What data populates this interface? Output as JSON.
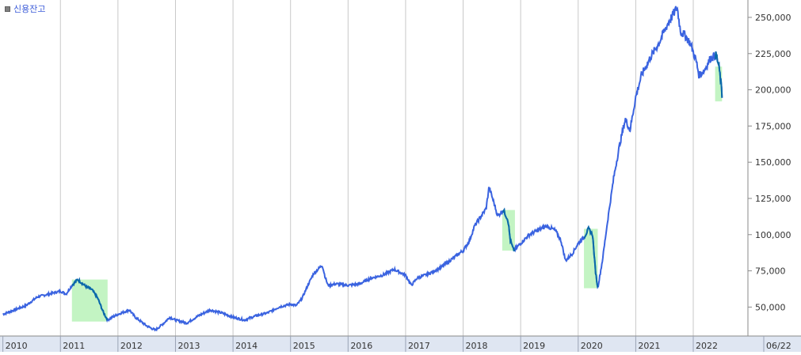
{
  "legend": {
    "label": "신용잔고"
  },
  "colors": {
    "line": "#3a63e0",
    "highlight_fill": "#b8f2b8",
    "highlight_line": "#0a6aa8",
    "grid": "#c8c8c8",
    "axis_bg": "#dfe6f2",
    "axis_text": "#333333"
  },
  "chart_data": {
    "type": "line",
    "title": "",
    "xlabel": "",
    "ylabel": "",
    "x_ticks": [
      "2010",
      "2011",
      "2012",
      "2013",
      "2014",
      "2015",
      "2016",
      "2017",
      "2018",
      "2019",
      "2020",
      "2021",
      "2022",
      "06/22"
    ],
    "y_ticks": [
      "50,000",
      "75,000",
      "100,000",
      "125,000",
      "150,000",
      "175,000",
      "200,000",
      "225,000",
      "250,000"
    ],
    "ylim": [
      30000,
      262000
    ],
    "grid": true,
    "series": [
      {
        "name": "신용잔고",
        "points": [
          [
            2010.0,
            45000
          ],
          [
            2010.2,
            48000
          ],
          [
            2010.4,
            51000
          ],
          [
            2010.6,
            57000
          ],
          [
            2010.8,
            59000
          ],
          [
            2011.0,
            61000
          ],
          [
            2011.1,
            59000
          ],
          [
            2011.2,
            65000
          ],
          [
            2011.3,
            69000
          ],
          [
            2011.45,
            64000
          ],
          [
            2011.55,
            62000
          ],
          [
            2011.65,
            56000
          ],
          [
            2011.75,
            46000
          ],
          [
            2011.82,
            41000
          ],
          [
            2011.9,
            43000
          ],
          [
            2012.0,
            45000
          ],
          [
            2012.2,
            48000
          ],
          [
            2012.3,
            43000
          ],
          [
            2012.5,
            37000
          ],
          [
            2012.65,
            34000
          ],
          [
            2012.8,
            39000
          ],
          [
            2012.9,
            43000
          ],
          [
            2013.0,
            41000
          ],
          [
            2013.2,
            39000
          ],
          [
            2013.4,
            44000
          ],
          [
            2013.6,
            48000
          ],
          [
            2013.8,
            46000
          ],
          [
            2014.0,
            43000
          ],
          [
            2014.2,
            41000
          ],
          [
            2014.4,
            44000
          ],
          [
            2014.6,
            46000
          ],
          [
            2014.8,
            50000
          ],
          [
            2015.0,
            52000
          ],
          [
            2015.1,
            51000
          ],
          [
            2015.2,
            56000
          ],
          [
            2015.3,
            65000
          ],
          [
            2015.4,
            73000
          ],
          [
            2015.5,
            77000
          ],
          [
            2015.55,
            79000
          ],
          [
            2015.6,
            71000
          ],
          [
            2015.65,
            65000
          ],
          [
            2015.8,
            66000
          ],
          [
            2016.0,
            65000
          ],
          [
            2016.2,
            66000
          ],
          [
            2016.4,
            70000
          ],
          [
            2016.6,
            72000
          ],
          [
            2016.8,
            76000
          ],
          [
            2017.0,
            72000
          ],
          [
            2017.1,
            65000
          ],
          [
            2017.2,
            70000
          ],
          [
            2017.4,
            73000
          ],
          [
            2017.6,
            77000
          ],
          [
            2017.8,
            83000
          ],
          [
            2018.0,
            89000
          ],
          [
            2018.1,
            95000
          ],
          [
            2018.2,
            106000
          ],
          [
            2018.3,
            112000
          ],
          [
            2018.4,
            118000
          ],
          [
            2018.45,
            133000
          ],
          [
            2018.55,
            120000
          ],
          [
            2018.6,
            113000
          ],
          [
            2018.7,
            117000
          ],
          [
            2018.78,
            110000
          ],
          [
            2018.82,
            96000
          ],
          [
            2018.88,
            89000
          ],
          [
            2019.0,
            94000
          ],
          [
            2019.15,
            100000
          ],
          [
            2019.3,
            103000
          ],
          [
            2019.45,
            106000
          ],
          [
            2019.6,
            103000
          ],
          [
            2019.7,
            96000
          ],
          [
            2019.78,
            82000
          ],
          [
            2019.9,
            87000
          ],
          [
            2020.0,
            94000
          ],
          [
            2020.1,
            98000
          ],
          [
            2020.18,
            104000
          ],
          [
            2020.25,
            100000
          ],
          [
            2020.3,
            75000
          ],
          [
            2020.34,
            63000
          ],
          [
            2020.42,
            82000
          ],
          [
            2020.52,
            112000
          ],
          [
            2020.62,
            140000
          ],
          [
            2020.72,
            162000
          ],
          [
            2020.82,
            180000
          ],
          [
            2020.9,
            172000
          ],
          [
            2021.0,
            195000
          ],
          [
            2021.1,
            210000
          ],
          [
            2021.25,
            222000
          ],
          [
            2021.4,
            232000
          ],
          [
            2021.55,
            245000
          ],
          [
            2021.65,
            252000
          ],
          [
            2021.72,
            257000
          ],
          [
            2021.78,
            240000
          ],
          [
            2021.85,
            238000
          ],
          [
            2021.95,
            232000
          ],
          [
            2022.05,
            220000
          ],
          [
            2022.1,
            210000
          ],
          [
            2022.2,
            214000
          ],
          [
            2022.3,
            222000
          ],
          [
            2022.4,
            224000
          ],
          [
            2022.45,
            215000
          ],
          [
            2022.48,
            205000
          ],
          [
            2022.5,
            195000
          ]
        ]
      }
    ],
    "highlights": [
      {
        "x_start": 2011.2,
        "x_end": 2011.82,
        "y_top": 69000,
        "y_bottom": 40000
      },
      {
        "x_start": 2018.68,
        "x_end": 2018.9,
        "y_top": 117000,
        "y_bottom": 89000
      },
      {
        "x_start": 2020.1,
        "x_end": 2020.34,
        "y_top": 104000,
        "y_bottom": 63000
      },
      {
        "x_start": 2022.38,
        "x_end": 2022.5,
        "y_top": 216000,
        "y_bottom": 192000
      }
    ]
  }
}
